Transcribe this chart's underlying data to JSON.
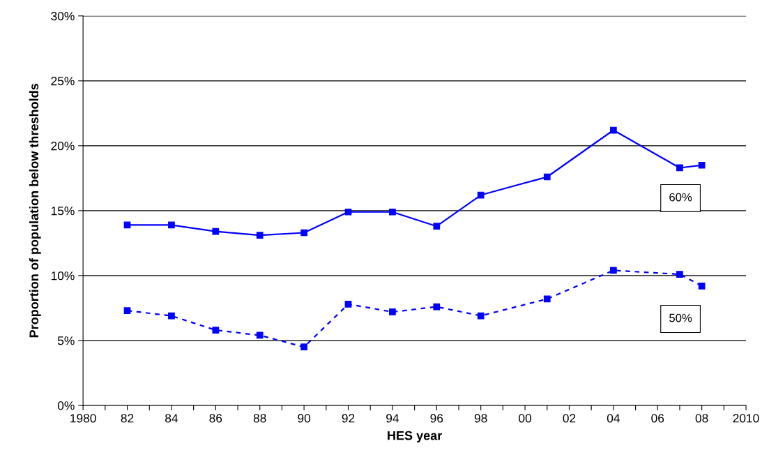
{
  "chart_data": {
    "type": "line",
    "xlabel": "HES year",
    "ylabel": "Proportion of population below thresholds",
    "series": [
      {
        "name": "60%",
        "color": "#0000ff",
        "line_style": "solid",
        "x": [
          1982,
          1984,
          1986,
          1988,
          1990,
          1992,
          1994,
          1996,
          1998,
          2001,
          2004,
          2007,
          2008
        ],
        "values": [
          13.9,
          13.9,
          13.4,
          13.1,
          13.3,
          14.9,
          14.9,
          13.8,
          16.2,
          17.6,
          21.2,
          18.3,
          18.5
        ]
      },
      {
        "name": "50%",
        "color": "#0000ff",
        "line_style": "dashed",
        "x": [
          1982,
          1984,
          1986,
          1988,
          1990,
          1992,
          1994,
          1996,
          1998,
          2001,
          2004,
          2007,
          2008
        ],
        "values": [
          7.3,
          6.9,
          5.8,
          5.4,
          4.5,
          7.8,
          7.2,
          7.6,
          6.9,
          8.2,
          10.4,
          10.1,
          9.2
        ]
      }
    ],
    "marker": "square",
    "grid": "y",
    "legend": false,
    "xlim": [
      1980,
      2010
    ],
    "xticks": [
      1980,
      {
        "value": 1981,
        "label": null
      },
      {
        "value": 1982,
        "label": "82"
      },
      {
        "value": 1983,
        "label": null
      },
      {
        "value": 1984,
        "label": "84"
      },
      {
        "value": 1985,
        "label": null
      },
      {
        "value": 1986,
        "label": "86"
      },
      {
        "value": 1987,
        "label": null
      },
      {
        "value": 1988,
        "label": "88"
      },
      {
        "value": 1989,
        "label": null
      },
      {
        "value": 1990,
        "label": "90"
      },
      {
        "value": 1991,
        "label": null
      },
      {
        "value": 1992,
        "label": "92"
      },
      {
        "value": 1993,
        "label": null
      },
      {
        "value": 1994,
        "label": "94"
      },
      {
        "value": 1995,
        "label": null
      },
      {
        "value": 1996,
        "label": "96"
      },
      {
        "value": 1997,
        "label": null
      },
      {
        "value": 1998,
        "label": "98"
      },
      {
        "value": 1999,
        "label": null
      },
      {
        "value": 2000,
        "label": "00"
      },
      {
        "value": 2001,
        "label": null
      },
      {
        "value": 2002,
        "label": "02"
      },
      {
        "value": 2003,
        "label": null
      },
      {
        "value": 2004,
        "label": "04"
      },
      {
        "value": 2005,
        "label": null
      },
      {
        "value": 2006,
        "label": "06"
      },
      {
        "value": 2007,
        "label": null
      },
      {
        "value": 2008,
        "label": "08"
      },
      {
        "value": 2009,
        "label": null
      },
      2010
    ],
    "ylim": [
      0,
      30
    ],
    "yticks": [
      {
        "value": 0,
        "label": "0%"
      },
      {
        "value": 5,
        "label": "5%"
      },
      {
        "value": 10,
        "label": "10%"
      },
      {
        "value": 15,
        "label": "15%"
      },
      {
        "value": 20,
        "label": "20%"
      },
      {
        "value": 25,
        "label": "25%"
      },
      {
        "value": 30,
        "label": "30%"
      }
    ]
  }
}
